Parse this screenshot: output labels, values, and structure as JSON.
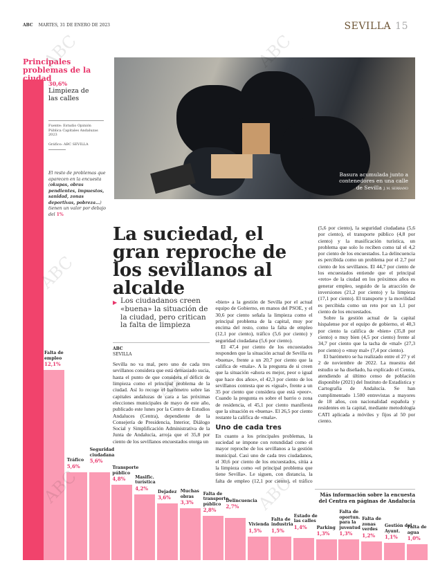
{
  "header": {
    "brand": "ABC",
    "date": "MARTES, 31 DE ENERO DE 2023",
    "section": "SEVILLA",
    "page": "15"
  },
  "graphic": {
    "title": "Principales problemas de la ciudad",
    "top_pct": "30,6%",
    "top_label": "Limpieza de las calles",
    "source": "Fuente: Estudio Opinión Pública Capitales Andaluzas 2023",
    "credit": "Gráfico: ABC SEVILLA",
    "note_pre": "El resto de problemas que aparecen en la encuesta (",
    "note_bold": "okupas, obras pendientes, impuestos, sanidad, zonas deportivas, pobreza…",
    "note_post": ") tienen un valor por debajo del ",
    "note_pct": "1%"
  },
  "photo": {
    "caption": "Basura acumulada junto a contenedores en una calle de Sevilla",
    "credit": "J. M. SERRANO"
  },
  "article": {
    "headline": "La suciedad, el gran reproche de los sevillanos al alcalde",
    "subhead": "Los ciudadanos creen «buena» la situación de la ciudad, pero critican la falta de limpieza",
    "byline_brand": "ABC",
    "byline_place": "SEVILLA",
    "p1": "Sevilla no va mal, pero uno de cada tres sevillanos considera que está demasiado sucia, hasta el punto de que considera el déficit de limpieza como el principal problema de la ciudad. Así lo recoge el barómetro sobre las capitales andaluzas de cara a las próximas elecciones municipales de mayo de este año, publicado este lunes por la Centro de Estudios Andaluces (Centra), dependiente de la Consejería de Presidencia, Interior, Diálogo Social y Simplificación Administrativa de la Junta de Andalucía, arroja que el 35,8 por ciento de los sevillanos encuestados otorga un «bien» a la gestión de Sevilla por el actual equipo de Gobierno, en manos del PSOE, y el 30,6 por ciento señala la limpieza como el principal problema de la capital, muy por encima del resto, como la falta de empleo (12,1 por ciento), tráfico (5,6 por ciento) y seguridad ciudadana (5,6 por ciento).",
    "p2": "El 47,4 por ciento de los encuestados responden que la situación actual de Sevilla es «buena», frente a un 20,7 por ciento que la califica de «mala». A la pregunta de si creen que la situación «ahora es mejor, peor o igual que hace dos años», el 42,3 por ciento de los sevillanos contesta que es «igual», frente a un 35 por ciento que considera que está «peor». Cuando la pregunta es sobre el barrio o zona de residencia, el 45,1 por ciento manifiesta que la situación es «buena». El 26,5 por ciento restante la califica de «mala».",
    "subtitle": "Uno de cada tres",
    "p3": "En cuanto a los principales problemas, la suciedad se impone con rotundidad como el mayor reproche de los sevillanos a la gestión municipal. Casi uno de cada tres ciudadanos, el 30,6 por ciento de los encuestados, sitúa a la limpieza como «el principal problema que tiene Sevilla». Le siguen, con distancia, la falta de empleo (12,1 por ciento), el tráfico (5,6 por ciento), la seguridad ciudadana (5,6 por ciento), el transporte público (4,8 por ciento) y la masificación turística, un problema que solo lo reciben como tal el 4,2 por ciento de los encuestados. La delincuencia es percibida como un problema por el 2,7 por ciento de los sevillanos. El 44,7 por ciento de los encuestados entiende que el principal «reto» de la ciudad en los próximos años es generar empleo, seguido de la atracción de inversiones (21,2 por ciento) y la limpieza (17,1 por ciento). El transporte y la movilidad es percibida como un reto por un 1,1 por ciento de los encuestados.",
    "p4": "Sobre la gestión actual de la capital hispalense por el equipo de gobierno, el 40,3 por ciento la califica de «bien» (35,8 por ciento) o muy bien (4,5 por ciento) frente al 34,7 por ciento que la tacha de «mal» (27,3 por ciento) o «muy mal» (7,4 por ciento).",
    "p5": "El barómetro se ha realizado entre el 27 y el 2 de noviembre de 2022. La muestra del estudio se ha diseñado, ha explicado el Centra, atendiendo al último censo de población disponible (2021) del Instituto de Estadística y Cartografía de Andalucía. Se han cumplimentado 1.500 entrevistas a mayores de 18 años, con nacionalidad española y residentes en la capital, mediante metodología CATI aplicada a móviles y fijos al 50 por ciento.",
    "more": "Más información sobre la encuesta del Centra en páginas de Andalucía"
  },
  "watermark": "ABC",
  "chart_data": {
    "type": "bar",
    "title": "Principales problemas de la ciudad",
    "categories": [
      "Limpieza de las calles",
      "Falta de empleo",
      "Tráfico",
      "Seguridad ciudadana",
      "Transporte público",
      "Masific. turística",
      "Dejadez",
      "Muchas obras",
      "Falta de transporte público",
      "Delincuencia",
      "Vivienda",
      "Falta de industria",
      "Estado de las calles",
      "Parking",
      "Falta de oportun. para la juventud",
      "Falta de zonas verdes",
      "Gestión del Ayunt.",
      "Falta de agua"
    ],
    "values": [
      30.6,
      12.1,
      5.6,
      5.6,
      4.8,
      4.2,
      3.6,
      3.3,
      2.8,
      2.7,
      1.5,
      1.5,
      1.4,
      1.3,
      1.3,
      1.2,
      1.1,
      1.0
    ],
    "labels": [
      "30,6%",
      "12,1%",
      "5,6%",
      "5,6%",
      "4,8%",
      "4,2%",
      "3,6%",
      "3,3%",
      "2,8%",
      "2,7%",
      "1,5%",
      "1,5%",
      "1,4%",
      "1,3%",
      "1,3%",
      "1,2%",
      "1,1%",
      "1,0%"
    ],
    "colors": {
      "top": "#f1436c",
      "rest": "#fb9bb4",
      "label": "#e8356a"
    }
  }
}
